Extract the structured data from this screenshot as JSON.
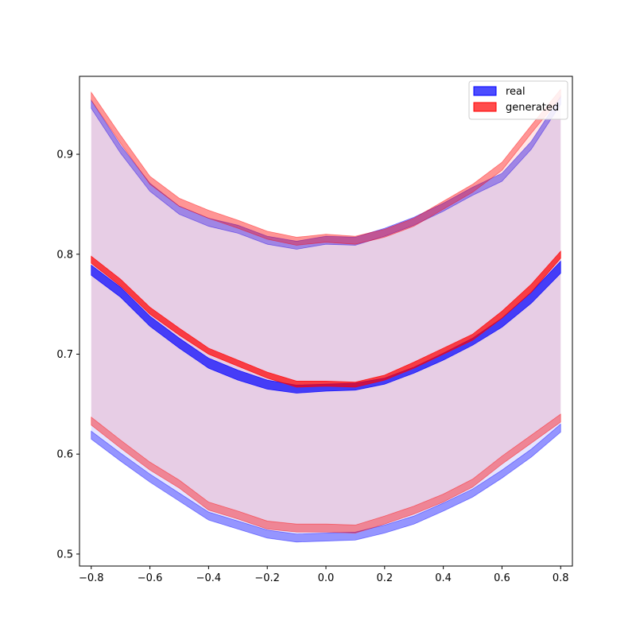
{
  "chart_data": {
    "type": "area",
    "title": "",
    "xlabel": "",
    "ylabel": "",
    "xlim": [
      -0.84,
      0.84
    ],
    "ylim": [
      0.488,
      0.978
    ],
    "x_ticks": [
      -0.8,
      -0.6,
      -0.4,
      -0.2,
      0.0,
      0.2,
      0.4,
      0.6,
      0.8
    ],
    "x_tick_labels": [
      "−0.8",
      "−0.6",
      "−0.4",
      "−0.2",
      "0.0",
      "0.2",
      "0.4",
      "0.6",
      "0.8"
    ],
    "y_ticks": [
      0.5,
      0.6,
      0.7,
      0.8,
      0.9
    ],
    "y_tick_labels": [
      "0.5",
      "0.6",
      "0.7",
      "0.8",
      "0.9"
    ],
    "grid": false,
    "legend_position": "top-right",
    "x": [
      -0.8,
      -0.7,
      -0.6,
      -0.5,
      -0.4,
      -0.3,
      -0.2,
      -0.1,
      0.0,
      0.1,
      0.2,
      0.3,
      0.4,
      0.5,
      0.6,
      0.7,
      0.8
    ],
    "series": [
      {
        "name": "real",
        "color": "#0000ff",
        "mean_lower": [
          0.779,
          0.757,
          0.728,
          0.706,
          0.686,
          0.674,
          0.665,
          0.661,
          0.663,
          0.664,
          0.67,
          0.681,
          0.694,
          0.709,
          0.727,
          0.751,
          0.781
        ],
        "mean_upper": [
          0.789,
          0.767,
          0.738,
          0.716,
          0.696,
          0.684,
          0.674,
          0.669,
          0.67,
          0.671,
          0.676,
          0.687,
          0.701,
          0.716,
          0.736,
          0.762,
          0.793
        ],
        "band_lower": [
          0.615,
          0.593,
          0.572,
          0.553,
          0.534,
          0.525,
          0.516,
          0.512,
          0.513,
          0.514,
          0.521,
          0.53,
          0.543,
          0.557,
          0.576,
          0.597,
          0.622
        ],
        "band_upper": [
          0.954,
          0.909,
          0.871,
          0.848,
          0.836,
          0.829,
          0.818,
          0.813,
          0.818,
          0.817,
          0.826,
          0.837,
          0.851,
          0.867,
          0.881,
          0.913,
          0.958
        ]
      },
      {
        "name": "generated",
        "color": "#ff0000",
        "mean_lower": [
          0.791,
          0.768,
          0.74,
          0.719,
          0.7,
          0.688,
          0.676,
          0.667,
          0.668,
          0.667,
          0.674,
          0.686,
          0.7,
          0.714,
          0.736,
          0.762,
          0.796
        ],
        "mean_upper": [
          0.798,
          0.775,
          0.747,
          0.726,
          0.706,
          0.694,
          0.682,
          0.673,
          0.673,
          0.672,
          0.679,
          0.692,
          0.706,
          0.72,
          0.743,
          0.77,
          0.803
        ],
        "band_lower": [
          0.629,
          0.606,
          0.584,
          0.566,
          0.544,
          0.535,
          0.525,
          0.522,
          0.522,
          0.521,
          0.53,
          0.54,
          0.552,
          0.567,
          0.59,
          0.611,
          0.632
        ],
        "band_upper": [
          0.962,
          0.919,
          0.878,
          0.856,
          0.844,
          0.834,
          0.823,
          0.817,
          0.82,
          0.818,
          0.825,
          0.836,
          0.853,
          0.87,
          0.892,
          0.929,
          0.965
        ]
      }
    ],
    "legend": [
      {
        "label": "real",
        "color": "#0000ff"
      },
      {
        "label": "generated",
        "color": "#ff0000"
      }
    ]
  }
}
